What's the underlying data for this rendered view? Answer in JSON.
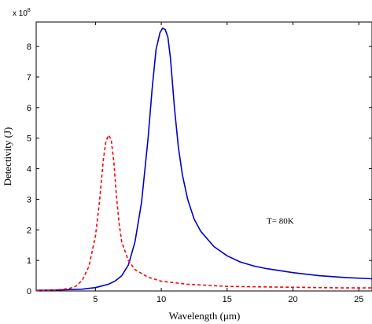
{
  "chart_data": {
    "type": "line",
    "xlabel": "Wavelength (μm)",
    "ylabel": "Detectivity (J)",
    "xlim": [
      0.5,
      26
    ],
    "ylim": [
      0,
      8.8
    ],
    "x_ticks": [
      5,
      10,
      15,
      20,
      25
    ],
    "y_ticks": [
      0,
      1,
      2,
      3,
      4,
      5,
      6,
      7,
      8
    ],
    "y_multiplier_base": "x 10",
    "y_multiplier_exp": "8",
    "grid": false,
    "annotations": [
      {
        "text": "T= 80K",
        "x": 18.0,
        "y": 2.2
      }
    ],
    "series": [
      {
        "color": "#0000cc",
        "style": "solid",
        "x": [
          0.5,
          2,
          4,
          5,
          6,
          6.5,
          7,
          7.5,
          8,
          8.5,
          9,
          9.3,
          9.6,
          9.9,
          10.1,
          10.3,
          10.5,
          10.7,
          11,
          11.3,
          11.6,
          12,
          12.5,
          13,
          14,
          15,
          16,
          17,
          18,
          20,
          22,
          24,
          26
        ],
        "y": [
          0.02,
          0.03,
          0.06,
          0.11,
          0.22,
          0.33,
          0.5,
          0.85,
          1.6,
          2.9,
          5.0,
          6.6,
          7.9,
          8.45,
          8.6,
          8.55,
          8.3,
          7.6,
          6.0,
          4.7,
          3.8,
          3.0,
          2.35,
          1.95,
          1.45,
          1.15,
          0.95,
          0.82,
          0.73,
          0.6,
          0.5,
          0.44,
          0.4
        ]
      },
      {
        "color": "#ff0000",
        "style": "dashed",
        "x": [
          0.5,
          2,
          3,
          3.5,
          4,
          4.5,
          5,
          5.3,
          5.6,
          5.8,
          6.0,
          6.2,
          6.4,
          6.6,
          6.8,
          7,
          7.5,
          8,
          9,
          10,
          12,
          15,
          20,
          24,
          26
        ],
        "y": [
          0.01,
          0.03,
          0.08,
          0.15,
          0.35,
          0.8,
          1.8,
          2.9,
          4.3,
          4.9,
          5.1,
          4.95,
          4.2,
          3.1,
          2.2,
          1.6,
          1.0,
          0.7,
          0.45,
          0.32,
          0.22,
          0.15,
          0.12,
          0.1,
          0.1
        ]
      }
    ]
  }
}
